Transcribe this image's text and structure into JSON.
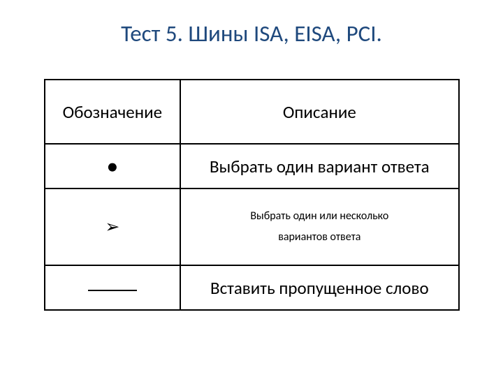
{
  "title": "Тест 5. Шины ISA, EISA, PCI.",
  "table": {
    "headers": {
      "left": "Обозначение",
      "right": "Описание"
    },
    "rows": [
      {
        "symbol": "●",
        "description": "Выбрать один вариант ответа"
      },
      {
        "symbol": "➢",
        "description_line1": "Выбрать один или несколько",
        "description_line2": "вариантов ответа"
      },
      {
        "symbol_type": "underline",
        "description": "Вставить пропущенное слово"
      }
    ]
  },
  "colors": {
    "title": "#1f497d",
    "text": "#000000",
    "border": "#000000",
    "background": "#ffffff"
  },
  "fonts": {
    "title_size": 33,
    "body_size": 25
  }
}
